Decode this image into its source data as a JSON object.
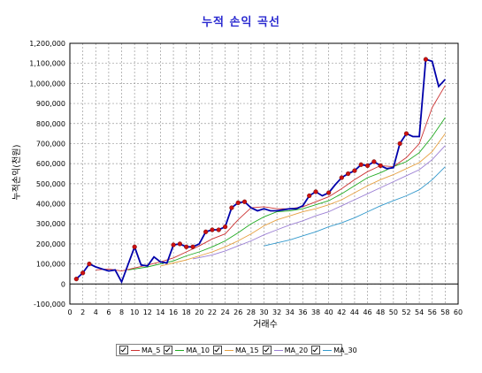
{
  "chart_data": {
    "type": "line",
    "title": "누적 손익 곡선",
    "xlabel": "거래수",
    "ylabel": "누적손익(천원)",
    "xlim": [
      0,
      60
    ],
    "ylim": [
      -100000,
      1200000
    ],
    "xticks": [
      0,
      2,
      4,
      6,
      8,
      10,
      12,
      14,
      16,
      18,
      20,
      22,
      24,
      26,
      28,
      30,
      32,
      34,
      36,
      38,
      40,
      42,
      44,
      46,
      48,
      50,
      52,
      54,
      56,
      58,
      60
    ],
    "yticks": [
      -100000,
      0,
      100000,
      200000,
      300000,
      400000,
      500000,
      600000,
      700000,
      800000,
      900000,
      1000000,
      1100000,
      1200000
    ],
    "ytick_labels": [
      "-100,000",
      "0",
      "100,000",
      "200,000",
      "300,000",
      "400,000",
      "500,000",
      "600,000",
      "700,000",
      "800,000",
      "900,000",
      "1,000,000",
      "1,100,000",
      "1,200,000"
    ],
    "grid": true,
    "legend_position": "bottom",
    "series": [
      {
        "name": "",
        "color": "#0000aa",
        "markers": true,
        "marker_color": "#cc1111",
        "x": [
          1,
          2,
          3,
          4,
          5,
          6,
          7,
          8,
          10,
          11,
          12,
          13,
          14,
          15,
          16,
          17,
          18,
          19,
          20,
          21,
          22,
          23,
          24,
          25,
          26,
          27,
          28,
          29,
          30,
          31,
          32,
          33,
          34,
          35,
          36,
          37,
          38,
          39,
          40,
          41,
          42,
          43,
          44,
          45,
          46,
          47,
          48,
          49,
          50,
          51,
          52,
          53,
          54,
          55,
          56,
          57,
          58
        ],
        "y": [
          25000,
          55000,
          100000,
          85000,
          75000,
          65000,
          70000,
          10000,
          185000,
          95000,
          90000,
          135000,
          110000,
          105000,
          195000,
          200000,
          185000,
          185000,
          200000,
          260000,
          270000,
          270000,
          285000,
          380000,
          405000,
          410000,
          380000,
          365000,
          375000,
          365000,
          365000,
          370000,
          375000,
          375000,
          390000,
          440000,
          460000,
          440000,
          455000,
          495000,
          530000,
          550000,
          565000,
          595000,
          590000,
          610000,
          590000,
          575000,
          580000,
          700000,
          750000,
          735000,
          735000,
          1120000,
          1110000,
          985000,
          1020000
        ],
        "marker_x": [
          1,
          2,
          3,
          10,
          16,
          17,
          18,
          19,
          21,
          22,
          23,
          24,
          25,
          26,
          27,
          37,
          38,
          40,
          42,
          43,
          44,
          45,
          46,
          47,
          48,
          51,
          52,
          55
        ],
        "marker_y": [
          25000,
          55000,
          100000,
          185000,
          195000,
          200000,
          185000,
          185000,
          260000,
          270000,
          270000,
          285000,
          380000,
          405000,
          410000,
          440000,
          460000,
          455000,
          530000,
          550000,
          565000,
          595000,
          590000,
          610000,
          590000,
          700000,
          750000,
          1120000
        ]
      },
      {
        "name": "MA_5",
        "color": "#cc3333",
        "markers": false,
        "x": [
          4,
          6,
          8,
          10,
          12,
          14,
          16,
          18,
          20,
          22,
          24,
          26,
          28,
          30,
          32,
          34,
          36,
          38,
          40,
          42,
          44,
          46,
          48,
          50,
          52,
          54,
          56,
          58
        ],
        "y": [
          70000,
          75000,
          65000,
          80000,
          95000,
          110000,
          130000,
          160000,
          190000,
          225000,
          250000,
          320000,
          380000,
          385000,
          375000,
          375000,
          385000,
          410000,
          435000,
          475000,
          520000,
          560000,
          590000,
          585000,
          630000,
          700000,
          880000,
          990000
        ]
      },
      {
        "name": "MA_10",
        "color": "#22aa22",
        "markers": false,
        "x": [
          9,
          12,
          14,
          16,
          18,
          20,
          22,
          24,
          26,
          28,
          30,
          32,
          34,
          36,
          38,
          40,
          42,
          44,
          46,
          48,
          50,
          52,
          54,
          56,
          58
        ],
        "y": [
          70000,
          85000,
          100000,
          115000,
          140000,
          160000,
          185000,
          215000,
          255000,
          300000,
          335000,
          360000,
          365000,
          375000,
          395000,
          415000,
          450000,
          490000,
          530000,
          555000,
          585000,
          610000,
          655000,
          735000,
          830000
        ]
      },
      {
        "name": "MA_15",
        "color": "#e6a040",
        "markers": false,
        "x": [
          14,
          16,
          18,
          20,
          22,
          24,
          26,
          28,
          30,
          32,
          34,
          36,
          38,
          40,
          42,
          44,
          46,
          48,
          50,
          52,
          54,
          56,
          58
        ],
        "y": [
          90000,
          105000,
          120000,
          140000,
          160000,
          185000,
          215000,
          250000,
          290000,
          320000,
          340000,
          360000,
          375000,
          395000,
          420000,
          455000,
          490000,
          520000,
          545000,
          575000,
          605000,
          660000,
          750000
        ]
      },
      {
        "name": "MA_20",
        "color": "#9b7fd4",
        "markers": false,
        "x": [
          19,
          22,
          24,
          26,
          28,
          30,
          32,
          34,
          36,
          38,
          40,
          42,
          44,
          46,
          48,
          50,
          52,
          54,
          56,
          58
        ],
        "y": [
          125000,
          145000,
          165000,
          190000,
          215000,
          245000,
          270000,
          295000,
          315000,
          340000,
          360000,
          390000,
          420000,
          450000,
          480000,
          510000,
          540000,
          570000,
          620000,
          690000
        ]
      },
      {
        "name": "MA_30",
        "color": "#3399cc",
        "markers": false,
        "x": [
          30,
          32,
          34,
          36,
          38,
          40,
          42,
          44,
          46,
          48,
          50,
          52,
          54,
          56,
          58
        ],
        "y": [
          190000,
          205000,
          220000,
          240000,
          260000,
          285000,
          305000,
          330000,
          360000,
          390000,
          415000,
          440000,
          470000,
          520000,
          585000
        ]
      }
    ]
  }
}
